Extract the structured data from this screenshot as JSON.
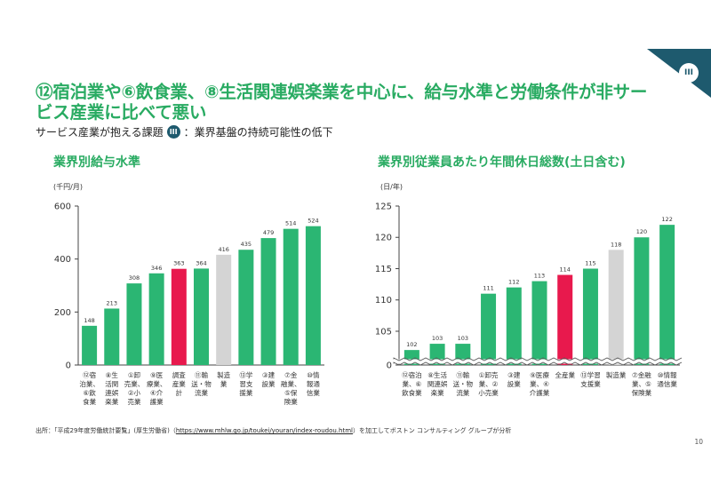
{
  "title": "⑫宿泊業や⑥飲食業、⑧生活関連娯楽業を中心に、給与水準と労働条件が非サービス産業に比べて悪い",
  "subtitle": {
    "prefix": "サービス産業が抱える課題",
    "badge": "III",
    "suffix": "：業界基盤の持続可能性の低下"
  },
  "corner_badge": "III",
  "colors": {
    "green": "#2bb673",
    "red": "#e8194d",
    "gray": "#d4d4d4",
    "accent_text": "#29ab62",
    "navy": "#1e5a6e"
  },
  "source": {
    "prefix": "出所：「平成29年度労働統計要覧」(厚生労働省)（",
    "url": "https://www.mhlw.go.jp/toukei/youran/index-roudou.html",
    "suffix": "）を加工してボストン コンサルティング グループが分析"
  },
  "page_number": "10",
  "chart_data": [
    {
      "type": "bar",
      "title": "業界別給与水準",
      "unit": "(千円/月)",
      "ylim": [
        0,
        600
      ],
      "yticks": [
        0,
        200,
        400,
        600
      ],
      "categories": [
        {
          "lines": [
            "⑫宿",
            "泊業、",
            "⑥飲",
            "食業"
          ],
          "value": 148,
          "color": "green"
        },
        {
          "lines": [
            "⑧生",
            "活関",
            "連娯",
            "楽業"
          ],
          "value": 213,
          "color": "green"
        },
        {
          "lines": [
            "①卸",
            "売業、",
            "②小",
            "売業"
          ],
          "value": 308,
          "color": "green"
        },
        {
          "lines": [
            "⑨医",
            "療業、",
            "④介",
            "護業"
          ],
          "value": 346,
          "color": "green"
        },
        {
          "lines": [
            "調査",
            "産業",
            "計"
          ],
          "value": 363,
          "color": "red"
        },
        {
          "lines": [
            "⑪輸",
            "送・物",
            "流業"
          ],
          "value": 364,
          "color": "green"
        },
        {
          "lines": [
            "製造",
            "業"
          ],
          "value": 416,
          "color": "gray"
        },
        {
          "lines": [
            "⑬学",
            "習支",
            "援業"
          ],
          "value": 435,
          "color": "green"
        },
        {
          "lines": [
            "③建",
            "設業"
          ],
          "value": 479,
          "color": "green"
        },
        {
          "lines": [
            "⑦金",
            "融業、",
            "⑤保",
            "険業"
          ],
          "value": 514,
          "color": "green"
        },
        {
          "lines": [
            "⑩情",
            "報通",
            "信業"
          ],
          "value": 524,
          "color": "green"
        }
      ]
    },
    {
      "type": "bar",
      "title": "業界別従業員あたり年間休日総数(土日含む)",
      "unit": "(日/年)",
      "ylim": [
        100,
        125
      ],
      "yticks": [
        0,
        105,
        110,
        115,
        120,
        125
      ],
      "axis_break": true,
      "categories": [
        {
          "lines": [
            "⑫宿泊",
            "業、⑥",
            "飲食業"
          ],
          "value": 102,
          "color": "green"
        },
        {
          "lines": [
            "⑧生活",
            "関連娯",
            "楽業"
          ],
          "value": 103,
          "color": "green"
        },
        {
          "lines": [
            "⑪輸",
            "送・物",
            "流業"
          ],
          "value": 103,
          "color": "green"
        },
        {
          "lines": [
            "①卸売",
            "業、②",
            "小売業"
          ],
          "value": 111,
          "color": "green"
        },
        {
          "lines": [
            "③建",
            "設業"
          ],
          "value": 112,
          "color": "green"
        },
        {
          "lines": [
            "⑨医療",
            "業、④",
            "介護業"
          ],
          "value": 113,
          "color": "green"
        },
        {
          "lines": [
            "全産業"
          ],
          "value": 114,
          "color": "red"
        },
        {
          "lines": [
            "⑬学習",
            "支援業"
          ],
          "value": 115,
          "color": "green"
        },
        {
          "lines": [
            "製造業"
          ],
          "value": 118,
          "color": "gray"
        },
        {
          "lines": [
            "⑦金融",
            "業、⑤",
            "保険業"
          ],
          "value": 120,
          "color": "green"
        },
        {
          "lines": [
            "⑩情報",
            "通信業"
          ],
          "value": 122,
          "color": "green"
        }
      ]
    }
  ]
}
